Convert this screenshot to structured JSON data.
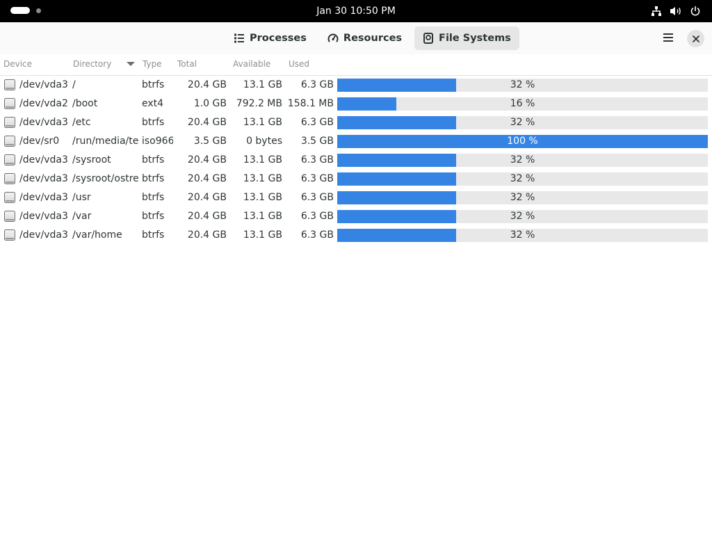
{
  "topbar": {
    "clock": "Jan 30  10:50 PM",
    "icons": [
      "network-icon",
      "volume-icon",
      "power-icon"
    ]
  },
  "header": {
    "tabs": [
      {
        "label": "Processes",
        "icon": "processes-list-icon"
      },
      {
        "label": "Resources",
        "icon": "speedometer-icon"
      },
      {
        "label": "File Systems",
        "icon": "disk-icon"
      }
    ],
    "active_tab": "File Systems",
    "menu_icon": "hamburger-menu-icon",
    "close_icon": "close-icon"
  },
  "table": {
    "columns": [
      "Device",
      "Directory",
      "Type",
      "Total",
      "Available",
      "Used"
    ],
    "sorted_by": "Directory",
    "accent_color": "#3584e4",
    "rows": [
      {
        "device": "/dev/vda3",
        "directory": "/",
        "type": "btrfs",
        "total": "20.4 GB",
        "available": "13.1 GB",
        "used": "6.3 GB",
        "percent": 32,
        "percent_label": "32 %"
      },
      {
        "device": "/dev/vda2",
        "directory": "/boot",
        "type": "ext4",
        "total": "1.0 GB",
        "available": "792.2 MB",
        "used": "158.1 MB",
        "percent": 16,
        "percent_label": "16 %"
      },
      {
        "device": "/dev/vda3",
        "directory": "/etc",
        "type": "btrfs",
        "total": "20.4 GB",
        "available": "13.1 GB",
        "used": "6.3 GB",
        "percent": 32,
        "percent_label": "32 %"
      },
      {
        "device": "/dev/sr0",
        "directory": "/run/media/tes",
        "type": "iso966",
        "total": "3.5 GB",
        "available": "0 bytes",
        "used": "3.5 GB",
        "percent": 100,
        "percent_label": "100 %"
      },
      {
        "device": "/dev/vda3",
        "directory": "/sysroot",
        "type": "btrfs",
        "total": "20.4 GB",
        "available": "13.1 GB",
        "used": "6.3 GB",
        "percent": 32,
        "percent_label": "32 %"
      },
      {
        "device": "/dev/vda3",
        "directory": "/sysroot/ostre",
        "type": "btrfs",
        "total": "20.4 GB",
        "available": "13.1 GB",
        "used": "6.3 GB",
        "percent": 32,
        "percent_label": "32 %"
      },
      {
        "device": "/dev/vda3",
        "directory": "/usr",
        "type": "btrfs",
        "total": "20.4 GB",
        "available": "13.1 GB",
        "used": "6.3 GB",
        "percent": 32,
        "percent_label": "32 %"
      },
      {
        "device": "/dev/vda3",
        "directory": "/var",
        "type": "btrfs",
        "total": "20.4 GB",
        "available": "13.1 GB",
        "used": "6.3 GB",
        "percent": 32,
        "percent_label": "32 %"
      },
      {
        "device": "/dev/vda3",
        "directory": "/var/home",
        "type": "btrfs",
        "total": "20.4 GB",
        "available": "13.1 GB",
        "used": "6.3 GB",
        "percent": 32,
        "percent_label": "32 %"
      }
    ]
  }
}
